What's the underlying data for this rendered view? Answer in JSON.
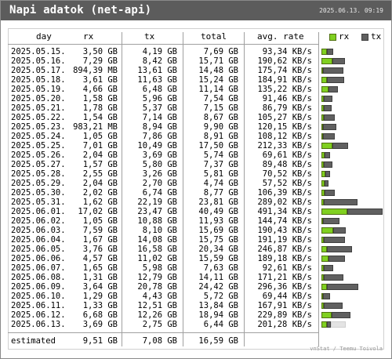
{
  "header": {
    "title": "Napi adatok (net-api)",
    "timestamp": "2025.06.13. 09:19"
  },
  "columns": {
    "day": "day",
    "rx": "rx",
    "tx": "tx",
    "total": "total",
    "avg_rate": "avg. rate"
  },
  "legend": {
    "rx_label": "rx",
    "tx_label": "tx",
    "rx_color": "#80d020",
    "tx_color": "#606060"
  },
  "rows": [
    {
      "day": "2025.05.15.",
      "rx": "3,50 GB",
      "tx": "4,19 GB",
      "total": "7,69 GB",
      "rate": "93,34 KB/s"
    },
    {
      "day": "2025.05.16.",
      "rx": "7,29 GB",
      "tx": "8,42 GB",
      "total": "15,71 GB",
      "rate": "190,62 KB/s"
    },
    {
      "day": "2025.05.17.",
      "rx": "894,39 MB",
      "tx": "13,61 GB",
      "total": "14,48 GB",
      "rate": "175,74 KB/s"
    },
    {
      "day": "2025.05.18.",
      "rx": "3,61 GB",
      "tx": "11,63 GB",
      "total": "15,24 GB",
      "rate": "184,91 KB/s"
    },
    {
      "day": "2025.05.19.",
      "rx": "4,66 GB",
      "tx": "6,48 GB",
      "total": "11,14 GB",
      "rate": "135,22 KB/s"
    },
    {
      "day": "2025.05.20.",
      "rx": "1,58 GB",
      "tx": "5,96 GB",
      "total": "7,54 GB",
      "rate": "91,46 KB/s"
    },
    {
      "day": "2025.05.21.",
      "rx": "1,78 GB",
      "tx": "5,37 GB",
      "total": "7,15 GB",
      "rate": "86,79 KB/s"
    },
    {
      "day": "2025.05.22.",
      "rx": "1,54 GB",
      "tx": "7,14 GB",
      "total": "8,67 GB",
      "rate": "105,27 KB/s"
    },
    {
      "day": "2025.05.23.",
      "rx": "983,21 MB",
      "tx": "8,94 GB",
      "total": "9,90 GB",
      "rate": "120,15 KB/s"
    },
    {
      "day": "2025.05.24.",
      "rx": "1,05 GB",
      "tx": "7,86 GB",
      "total": "8,91 GB",
      "rate": "108,12 KB/s"
    },
    {
      "day": "2025.05.25.",
      "rx": "7,01 GB",
      "tx": "10,49 GB",
      "total": "17,50 GB",
      "rate": "212,33 KB/s"
    },
    {
      "day": "2025.05.26.",
      "rx": "2,04 GB",
      "tx": "3,69 GB",
      "total": "5,74 GB",
      "rate": "69,61 KB/s"
    },
    {
      "day": "2025.05.27.",
      "rx": "1,57 GB",
      "tx": "5,80 GB",
      "total": "7,37 GB",
      "rate": "89,48 KB/s"
    },
    {
      "day": "2025.05.28.",
      "rx": "2,55 GB",
      "tx": "3,26 GB",
      "total": "5,81 GB",
      "rate": "70,52 KB/s"
    },
    {
      "day": "2025.05.29.",
      "rx": "2,04 GB",
      "tx": "2,70 GB",
      "total": "4,74 GB",
      "rate": "57,52 KB/s"
    },
    {
      "day": "2025.05.30.",
      "rx": "2,02 GB",
      "tx": "6,74 GB",
      "total": "8,77 GB",
      "rate": "106,39 KB/s"
    },
    {
      "day": "2025.05.31.",
      "rx": "1,62 GB",
      "tx": "22,19 GB",
      "total": "23,81 GB",
      "rate": "289,02 KB/s"
    },
    {
      "day": "2025.06.01.",
      "rx": "17,02 GB",
      "tx": "23,47 GB",
      "total": "40,49 GB",
      "rate": "491,34 KB/s"
    },
    {
      "day": "2025.06.02.",
      "rx": "1,05 GB",
      "tx": "10,88 GB",
      "total": "11,93 GB",
      "rate": "144,74 KB/s"
    },
    {
      "day": "2025.06.03.",
      "rx": "7,59 GB",
      "tx": "8,10 GB",
      "total": "15,69 GB",
      "rate": "190,43 KB/s"
    },
    {
      "day": "2025.06.04.",
      "rx": "1,67 GB",
      "tx": "14,08 GB",
      "total": "15,75 GB",
      "rate": "191,19 KB/s"
    },
    {
      "day": "2025.06.05.",
      "rx": "3,76 GB",
      "tx": "16,58 GB",
      "total": "20,34 GB",
      "rate": "246,87 KB/s"
    },
    {
      "day": "2025.06.06.",
      "rx": "4,57 GB",
      "tx": "11,02 GB",
      "total": "15,59 GB",
      "rate": "189,18 KB/s"
    },
    {
      "day": "2025.06.07.",
      "rx": "1,65 GB",
      "tx": "5,98 GB",
      "total": "7,63 GB",
      "rate": "92,61 KB/s"
    },
    {
      "day": "2025.06.08.",
      "rx": "1,31 GB",
      "tx": "12,79 GB",
      "total": "14,11 GB",
      "rate": "171,21 KB/s"
    },
    {
      "day": "2025.06.09.",
      "rx": "3,64 GB",
      "tx": "20,78 GB",
      "total": "24,42 GB",
      "rate": "296,36 KB/s"
    },
    {
      "day": "2025.06.10.",
      "rx": "1,29 GB",
      "tx": "4,43 GB",
      "total": "5,72 GB",
      "rate": "69,44 KB/s"
    },
    {
      "day": "2025.06.11.",
      "rx": "1,33 GB",
      "tx": "12,51 GB",
      "total": "13,84 GB",
      "rate": "167,91 KB/s"
    },
    {
      "day": "2025.06.12.",
      "rx": "6,68 GB",
      "tx": "12,26 GB",
      "total": "18,94 GB",
      "rate": "229,89 KB/s"
    },
    {
      "day": "2025.06.13.",
      "rx": "3,69 GB",
      "tx": "2,75 GB",
      "total": "6,44 GB",
      "rate": "201,28 KB/s"
    }
  ],
  "bars": [
    {
      "rx": 3.5,
      "tx": 4.19
    },
    {
      "rx": 7.29,
      "tx": 8.42
    },
    {
      "rx": 0.87,
      "tx": 13.61
    },
    {
      "rx": 3.61,
      "tx": 11.63
    },
    {
      "rx": 4.66,
      "tx": 6.48
    },
    {
      "rx": 1.58,
      "tx": 5.96
    },
    {
      "rx": 1.78,
      "tx": 5.37
    },
    {
      "rx": 1.54,
      "tx": 7.14
    },
    {
      "rx": 0.96,
      "tx": 8.94
    },
    {
      "rx": 1.05,
      "tx": 7.86
    },
    {
      "rx": 7.01,
      "tx": 10.49
    },
    {
      "rx": 2.04,
      "tx": 3.69
    },
    {
      "rx": 1.57,
      "tx": 5.8
    },
    {
      "rx": 2.55,
      "tx": 3.26
    },
    {
      "rx": 2.04,
      "tx": 2.7
    },
    {
      "rx": 2.02,
      "tx": 6.74
    },
    {
      "rx": 1.62,
      "tx": 22.19
    },
    {
      "rx": 17.02,
      "tx": 23.47
    },
    {
      "rx": 1.05,
      "tx": 10.88
    },
    {
      "rx": 7.59,
      "tx": 8.1
    },
    {
      "rx": 1.67,
      "tx": 14.08
    },
    {
      "rx": 3.76,
      "tx": 16.58
    },
    {
      "rx": 4.57,
      "tx": 11.02
    },
    {
      "rx": 1.65,
      "tx": 5.98
    },
    {
      "rx": 1.31,
      "tx": 12.79
    },
    {
      "rx": 3.64,
      "tx": 20.78
    },
    {
      "rx": 1.29,
      "tx": 4.43
    },
    {
      "rx": 1.33,
      "tx": 12.51
    },
    {
      "rx": 6.68,
      "tx": 12.26
    },
    {
      "rx": 3.69,
      "tx": 2.75
    }
  ],
  "estimated": {
    "label": "estimated",
    "rx": "9,51 GB",
    "tx": "7,08 GB",
    "total": "16,59 GB"
  },
  "footer": "vnStat / Teemu Toivola"
}
